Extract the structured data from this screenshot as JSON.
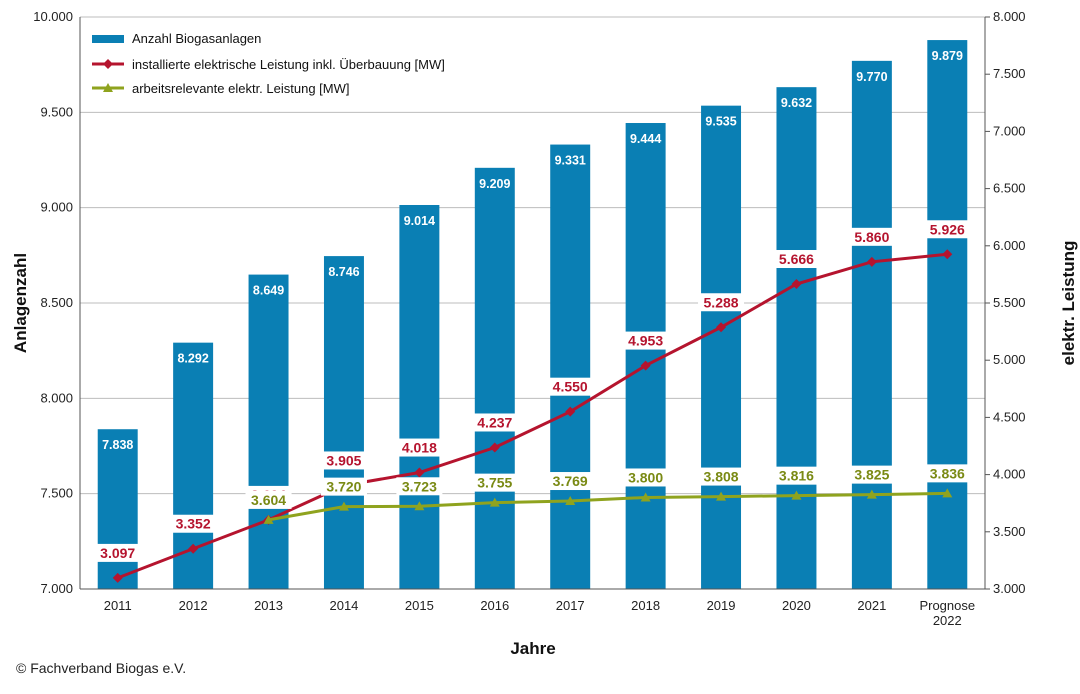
{
  "chart_data": {
    "type": "bar",
    "categories": [
      "2011",
      "2012",
      "2013",
      "2014",
      "2015",
      "2016",
      "2017",
      "2018",
      "2019",
      "2020",
      "2021",
      "Prognose 2022"
    ],
    "series": [
      {
        "name": "Anzahl Biogasanlagen",
        "kind": "bar",
        "axis": "left",
        "color": "#0a7fb4",
        "values": [
          7838,
          8292,
          8649,
          8746,
          9014,
          9209,
          9331,
          9444,
          9535,
          9632,
          9770,
          9879
        ],
        "labels": [
          "7.838",
          "8.292",
          "8.649",
          "8.746",
          "9.014",
          "9.209",
          "9.331",
          "9.444",
          "9.535",
          "9.632",
          "9.770",
          "9.879"
        ]
      },
      {
        "name": "installierte elektrische Leistung inkl. Überbauung [MW]",
        "kind": "line",
        "axis": "right",
        "color": "#b5142e",
        "values": [
          3097,
          3352,
          3604,
          3905,
          4018,
          4237,
          4550,
          4953,
          5288,
          5666,
          5860,
          5926
        ],
        "labels": [
          "3.097",
          "3.352",
          "3.604",
          "3.905",
          "4.018",
          "4.237",
          "4.550",
          "4.953",
          "5.288",
          "5.666",
          "5.860",
          "5.926"
        ]
      },
      {
        "name": "arbeitsrelevante elektr. Leistung [MW]",
        "kind": "line",
        "axis": "right",
        "color": "#8fa31e",
        "values": [
          null,
          null,
          3604,
          3720,
          3723,
          3755,
          3769,
          3800,
          3808,
          3816,
          3825,
          3836
        ],
        "labels": [
          null,
          null,
          "3.604",
          "3.720",
          "3.723",
          "3.755",
          "3.769",
          "3.800",
          "3.808",
          "3.816",
          "3.825",
          "3.836"
        ]
      }
    ],
    "xlabel": "Jahre",
    "ylabel": "Anlagenzahl",
    "y2label": "elektr. Leistung",
    "ylim": [
      7000,
      10000
    ],
    "y2lim": [
      3000,
      8000
    ],
    "yticks": [
      "7.000",
      "7.500",
      "8.000",
      "8.500",
      "9.000",
      "9.500",
      "10.000"
    ],
    "y2ticks": [
      "3.000",
      "3.500",
      "4.000",
      "4.500",
      "5.000",
      "5.500",
      "6.000",
      "6.500",
      "7.000",
      "7.500",
      "8.000"
    ],
    "grid": true,
    "legend_position": "top-left"
  },
  "copyright": "© Fachverband Biogas e.V."
}
